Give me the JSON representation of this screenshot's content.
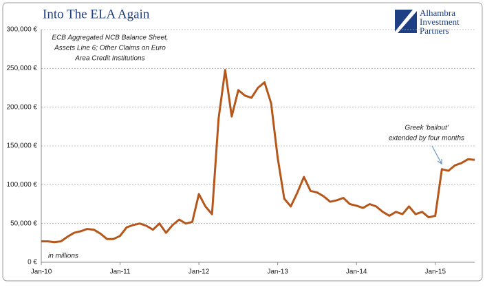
{
  "chart_data": {
    "type": "line",
    "title": "Into The ELA Again",
    "subtitle": [
      "ECB Aggregated NCB Balance Sheet,",
      "Assets Line 6; Other Claims on Euro",
      "Area Credit Institutions"
    ],
    "units_note": "in millions",
    "logo": [
      "Alhambra",
      "Investment",
      "Partners"
    ],
    "annotation": [
      "Greek 'bailout'",
      "extended by four months"
    ],
    "categories": [
      "Jan-10",
      null,
      null,
      null,
      null,
      null,
      null,
      null,
      null,
      null,
      null,
      null,
      "Jan-11",
      null,
      null,
      null,
      null,
      null,
      null,
      null,
      null,
      null,
      null,
      null,
      "Jan-12",
      null,
      null,
      null,
      null,
      null,
      null,
      null,
      null,
      null,
      null,
      null,
      "Jan-13",
      null,
      null,
      null,
      null,
      null,
      null,
      null,
      null,
      null,
      null,
      null,
      "Jan-14",
      null,
      null,
      null,
      null,
      null,
      null,
      null,
      null,
      null,
      null,
      null,
      "Jan-15",
      null,
      null,
      null,
      null,
      null,
      null
    ],
    "series": [
      {
        "name": "Other Claims on Euro Area Credit Institutions",
        "color": "#b5561a",
        "values": [
          27000,
          27000,
          26000,
          27000,
          33000,
          38000,
          40000,
          43000,
          42000,
          37000,
          30000,
          30000,
          34000,
          45000,
          48000,
          50000,
          47000,
          42000,
          50000,
          38000,
          48000,
          55000,
          50000,
          52000,
          88000,
          72000,
          62000,
          185000,
          248000,
          188000,
          222000,
          215000,
          212000,
          225000,
          232000,
          205000,
          135000,
          82000,
          72000,
          90000,
          110000,
          92000,
          90000,
          85000,
          78000,
          80000,
          83000,
          75000,
          73000,
          70000,
          75000,
          72000,
          65000,
          60000,
          65000,
          62000,
          72000,
          62000,
          65000,
          58000,
          60000,
          120000,
          118000,
          125000,
          128000,
          133000,
          132000
        ]
      }
    ],
    "ylim": [
      0,
      300000
    ],
    "yticks": [
      {
        "value": 0,
        "label": "0 €"
      },
      {
        "value": 50000,
        "label": "50,000 €"
      },
      {
        "value": 100000,
        "label": "100,000 €"
      },
      {
        "value": 150000,
        "label": "150,000 €"
      },
      {
        "value": 200000,
        "label": "200,000 €"
      },
      {
        "value": 250000,
        "label": "250,000 €"
      },
      {
        "value": 300000,
        "label": "300,000 €"
      }
    ],
    "grid": true
  }
}
